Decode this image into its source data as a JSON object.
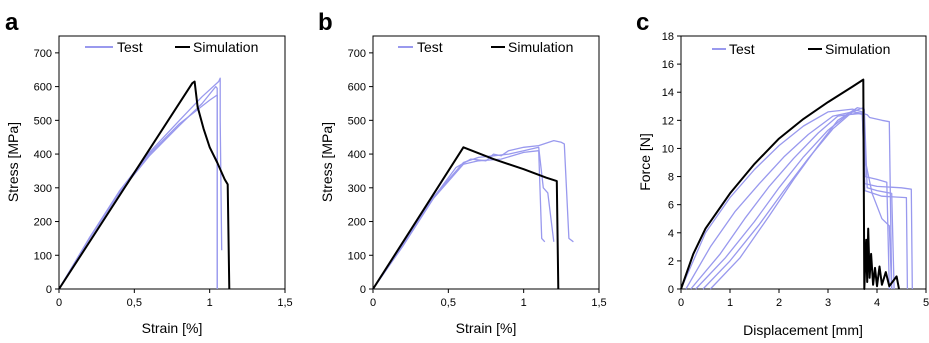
{
  "chart_data": [
    {
      "panel_letter": "a",
      "type": "line",
      "xlabel": "Strain [%]",
      "ylabel": "Stress [MPa]",
      "xlim": [
        0,
        1.5
      ],
      "ylim": [
        0,
        750
      ],
      "xticks": [
        0,
        0.5,
        1,
        1.5
      ],
      "xtick_labels": [
        "0",
        "0,5",
        "1",
        "1,5"
      ],
      "yticks": [
        0,
        100,
        200,
        300,
        400,
        500,
        600,
        700
      ],
      "ytick_labels": [
        "0",
        "100",
        "200",
        "300",
        "400",
        "500",
        "600",
        "700"
      ],
      "legend": {
        "placement": "top",
        "entries": [
          {
            "label": "Test",
            "color": "#9999ee"
          },
          {
            "label": "Simulation",
            "color": "#000000"
          }
        ]
      },
      "series": [
        {
          "name": "Test",
          "color": "#9999ee",
          "points": [
            [
              0,
              0
            ],
            [
              0.2,
              150
            ],
            [
              0.4,
              290
            ],
            [
              0.6,
              405
            ],
            [
              0.8,
              500
            ],
            [
              0.95,
              570
            ],
            [
              1.06,
              615
            ],
            [
              1.07,
              625
            ],
            [
              1.07,
              500
            ],
            [
              1.08,
              115
            ]
          ]
        },
        {
          "name": "Test",
          "color": "#9999ee",
          "points": [
            [
              0,
              0
            ],
            [
              0.2,
              148
            ],
            [
              0.4,
              285
            ],
            [
              0.6,
              395
            ],
            [
              0.8,
              485
            ],
            [
              0.95,
              550
            ],
            [
              1.04,
              600
            ],
            [
              1.05,
              595
            ],
            [
              1.05,
              0
            ]
          ]
        },
        {
          "name": "Test",
          "color": "#9999ee",
          "points": [
            [
              0,
              0
            ],
            [
              0.2,
              150
            ],
            [
              0.4,
              288
            ],
            [
              0.6,
              400
            ],
            [
              0.8,
              490
            ],
            [
              1.0,
              560
            ],
            [
              1.05,
              575
            ],
            [
              1.05,
              0
            ]
          ]
        },
        {
          "name": "Simulation",
          "color": "#000000",
          "points": [
            [
              0,
              0
            ],
            [
              0.885,
              610
            ],
            [
              0.9,
              615
            ],
            [
              0.92,
              540
            ],
            [
              0.96,
              475
            ],
            [
              1.0,
              420
            ],
            [
              1.05,
              375
            ],
            [
              1.1,
              325
            ],
            [
              1.12,
              310
            ],
            [
              1.13,
              0
            ]
          ]
        }
      ]
    },
    {
      "panel_letter": "b",
      "type": "line",
      "xlabel": "Strain [%]",
      "ylabel": "Stress [MPa]",
      "xlim": [
        0,
        1.5
      ],
      "ylim": [
        0,
        750
      ],
      "xticks": [
        0,
        0.5,
        1,
        1.5
      ],
      "xtick_labels": [
        "0",
        "0,5",
        "1",
        "1,5"
      ],
      "yticks": [
        0,
        100,
        200,
        300,
        400,
        500,
        600,
        700
      ],
      "ytick_labels": [
        "0",
        "100",
        "200",
        "300",
        "400",
        "500",
        "600",
        "700"
      ],
      "legend": {
        "placement": "top",
        "entries": [
          {
            "label": "Test",
            "color": "#9999ee"
          },
          {
            "label": "Simulation",
            "color": "#000000"
          }
        ]
      },
      "series": [
        {
          "name": "Test",
          "color": "#9999ee",
          "points": [
            [
              0,
              0
            ],
            [
              0.2,
              130
            ],
            [
              0.4,
              270
            ],
            [
              0.55,
              360
            ],
            [
              0.65,
              385
            ],
            [
              0.75,
              380
            ],
            [
              0.8,
              400
            ],
            [
              0.85,
              395
            ],
            [
              0.9,
              410
            ],
            [
              1.0,
              420
            ],
            [
              1.1,
              425
            ],
            [
              1.2,
              440
            ],
            [
              1.25,
              435
            ],
            [
              1.27,
              430
            ],
            [
              1.3,
              150
            ],
            [
              1.33,
              140
            ]
          ]
        },
        {
          "name": "Test",
          "color": "#9999ee",
          "points": [
            [
              0,
              0
            ],
            [
              0.2,
              132
            ],
            [
              0.4,
              272
            ],
            [
              0.6,
              375
            ],
            [
              0.7,
              390
            ],
            [
              0.8,
              395
            ],
            [
              0.9,
              400
            ],
            [
              1.0,
              410
            ],
            [
              1.1,
              420
            ],
            [
              1.13,
              300
            ],
            [
              1.16,
              285
            ],
            [
              1.2,
              140
            ]
          ]
        },
        {
          "name": "Test",
          "color": "#9999ee",
          "points": [
            [
              0,
              0
            ],
            [
              0.2,
              128
            ],
            [
              0.4,
              268
            ],
            [
              0.6,
              370
            ],
            [
              0.7,
              380
            ],
            [
              0.85,
              385
            ],
            [
              1.0,
              405
            ],
            [
              1.1,
              410
            ],
            [
              1.12,
              150
            ],
            [
              1.14,
              140
            ]
          ]
        },
        {
          "name": "Simulation",
          "color": "#000000",
          "points": [
            [
              0,
              0
            ],
            [
              0.6,
              420
            ],
            [
              0.8,
              385
            ],
            [
              1.0,
              355
            ],
            [
              1.15,
              330
            ],
            [
              1.22,
              320
            ],
            [
              1.23,
              0
            ]
          ]
        }
      ]
    },
    {
      "panel_letter": "c",
      "type": "line",
      "xlabel": "Displacement [mm]",
      "ylabel": "Force [N]",
      "xlim": [
        0,
        5
      ],
      "ylim": [
        0,
        18
      ],
      "xticks": [
        0,
        1,
        2,
        3,
        4,
        5
      ],
      "xtick_labels": [
        "0",
        "1",
        "2",
        "3",
        "4",
        "5"
      ],
      "yticks": [
        0,
        2,
        4,
        6,
        8,
        10,
        12,
        14,
        16,
        18
      ],
      "ytick_labels": [
        "0",
        "2",
        "4",
        "6",
        "8",
        "10",
        "12",
        "14",
        "16",
        "18"
      ],
      "legend": {
        "placement": "top",
        "entries": [
          {
            "label": "Test",
            "color": "#9999ee"
          },
          {
            "label": "Simulation",
            "color": "#000000"
          }
        ]
      },
      "series": [
        {
          "name": "Test",
          "color": "#9999ee",
          "points": [
            [
              0,
              0
            ],
            [
              0.5,
              4
            ],
            [
              1,
              6.5
            ],
            [
              1.5,
              8.5
            ],
            [
              2,
              10.2
            ],
            [
              2.5,
              11.6
            ],
            [
              3,
              12.6
            ],
            [
              3.5,
              12.8
            ],
            [
              3.7,
              12.6
            ],
            [
              3.75,
              7.5
            ],
            [
              4,
              7.3
            ],
            [
              4.5,
              7.2
            ],
            [
              4.7,
              7.1
            ],
            [
              4.72,
              0
            ]
          ]
        },
        {
          "name": "Test",
          "color": "#9999ee",
          "points": [
            [
              0.1,
              0
            ],
            [
              0.6,
              3
            ],
            [
              1.1,
              5.5
            ],
            [
              1.6,
              7.5
            ],
            [
              2.1,
              9.4
            ],
            [
              2.6,
              11
            ],
            [
              3.1,
              12.3
            ],
            [
              3.5,
              12.6
            ],
            [
              3.7,
              12.5
            ],
            [
              3.75,
              7
            ],
            [
              4.1,
              6.6
            ],
            [
              4.6,
              6.5
            ],
            [
              4.62,
              0
            ]
          ]
        },
        {
          "name": "Test",
          "color": "#9999ee",
          "points": [
            [
              0.2,
              0
            ],
            [
              0.8,
              2.5
            ],
            [
              1.3,
              5
            ],
            [
              1.8,
              7.3
            ],
            [
              2.3,
              9.3
            ],
            [
              2.8,
              11.1
            ],
            [
              3.2,
              12.3
            ],
            [
              3.6,
              12.5
            ],
            [
              3.72,
              12.4
            ],
            [
              3.76,
              8
            ],
            [
              4,
              7.8
            ],
            [
              4.2,
              7.6
            ],
            [
              4.25,
              0
            ]
          ]
        },
        {
          "name": "Test",
          "color": "#9999ee",
          "points": [
            [
              0.3,
              0
            ],
            [
              0.9,
              2.2
            ],
            [
              1.5,
              4.8
            ],
            [
              2,
              7.2
            ],
            [
              2.5,
              9.4
            ],
            [
              3,
              11.3
            ],
            [
              3.4,
              12.4
            ],
            [
              3.7,
              12.5
            ],
            [
              3.8,
              12.4
            ],
            [
              3.85,
              12.2
            ],
            [
              4.1,
              12
            ],
            [
              4.25,
              11.9
            ],
            [
              4.3,
              0
            ]
          ]
        },
        {
          "name": "Test",
          "color": "#9999ee",
          "points": [
            [
              0.45,
              0
            ],
            [
              1.0,
              2
            ],
            [
              1.6,
              4.6
            ],
            [
              2.1,
              7
            ],
            [
              2.6,
              9.3
            ],
            [
              3.1,
              11.4
            ],
            [
              3.5,
              12.6
            ],
            [
              3.72,
              12.9
            ],
            [
              3.77,
              9
            ],
            [
              3.9,
              6.8
            ],
            [
              4.1,
              5
            ],
            [
              4.25,
              4.5
            ],
            [
              4.3,
              0
            ]
          ]
        },
        {
          "name": "Test",
          "color": "#9999ee",
          "points": [
            [
              0.6,
              0
            ],
            [
              1.2,
              2.2
            ],
            [
              1.8,
              5.2
            ],
            [
              2.3,
              7.8
            ],
            [
              2.8,
              10.2
            ],
            [
              3.2,
              12
            ],
            [
              3.6,
              12.9
            ],
            [
              3.74,
              12.8
            ],
            [
              3.8,
              7.2
            ],
            [
              4,
              7
            ],
            [
              4.3,
              6.8
            ],
            [
              4.35,
              0
            ]
          ]
        },
        {
          "name": "Simulation",
          "color": "#000000",
          "points": [
            [
              0,
              0
            ],
            [
              0.25,
              2.5
            ],
            [
              0.5,
              4.3
            ],
            [
              1,
              6.8
            ],
            [
              1.5,
              8.9
            ],
            [
              2,
              10.7
            ],
            [
              2.5,
              12.1
            ],
            [
              3,
              13.3
            ],
            [
              3.5,
              14.4
            ],
            [
              3.72,
              14.9
            ],
            [
              3.74,
              0
            ],
            [
              3.78,
              3.5
            ],
            [
              3.8,
              0.5
            ],
            [
              3.82,
              4.3
            ],
            [
              3.85,
              0.8
            ],
            [
              3.88,
              2.5
            ],
            [
              3.92,
              0.3
            ],
            [
              3.96,
              1.5
            ],
            [
              4.0,
              0.2
            ],
            [
              4.05,
              1.6
            ],
            [
              4.1,
              0.3
            ],
            [
              4.18,
              1.2
            ],
            [
              4.25,
              0.2
            ],
            [
              4.4,
              0.9
            ],
            [
              4.45,
              0
            ]
          ]
        }
      ]
    }
  ]
}
